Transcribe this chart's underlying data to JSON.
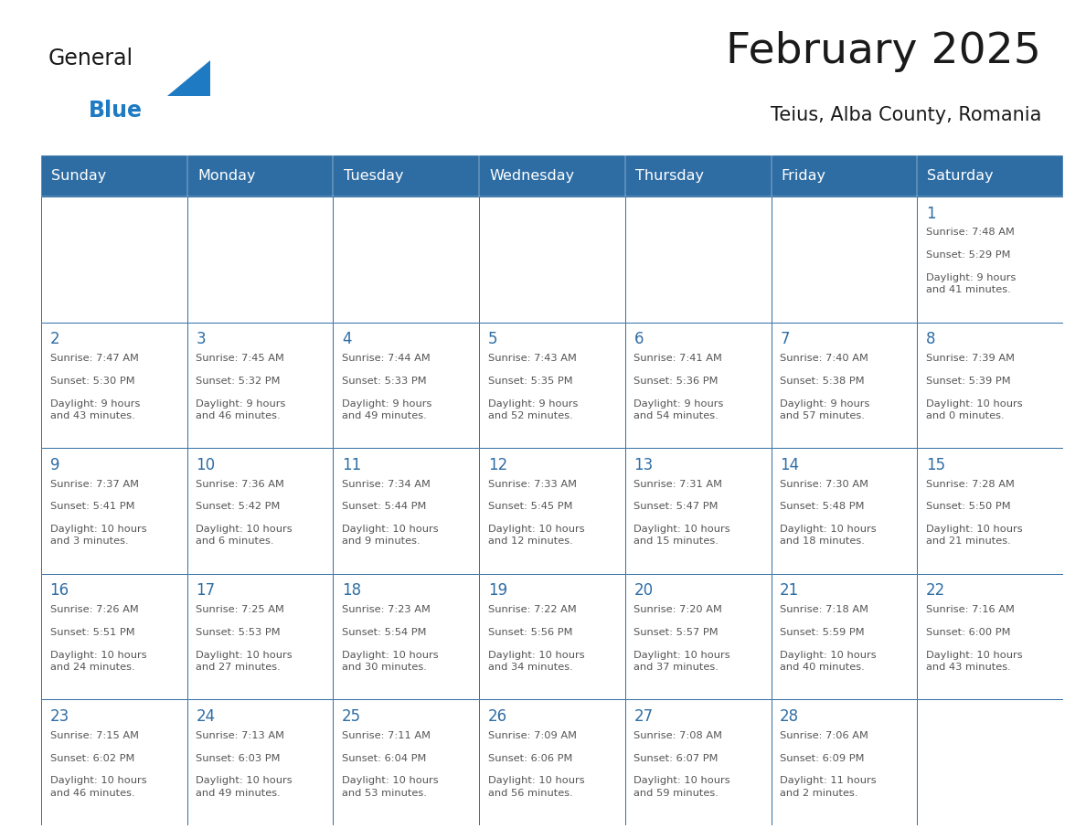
{
  "title": "February 2025",
  "subtitle": "Teius, Alba County, Romania",
  "header_bg": "#2E6DA4",
  "header_text": "#FFFFFF",
  "cell_bg": "#FFFFFF",
  "border_color": "#2E6DA4",
  "text_color": "#555555",
  "day_number_color": "#2E6DA4",
  "days_of_week": [
    "Sunday",
    "Monday",
    "Tuesday",
    "Wednesday",
    "Thursday",
    "Friday",
    "Saturday"
  ],
  "calendar": [
    [
      null,
      null,
      null,
      null,
      null,
      null,
      {
        "day": 1,
        "sunrise": "7:48 AM",
        "sunset": "5:29 PM",
        "daylight": "9 hours\nand 41 minutes."
      }
    ],
    [
      {
        "day": 2,
        "sunrise": "7:47 AM",
        "sunset": "5:30 PM",
        "daylight": "9 hours\nand 43 minutes."
      },
      {
        "day": 3,
        "sunrise": "7:45 AM",
        "sunset": "5:32 PM",
        "daylight": "9 hours\nand 46 minutes."
      },
      {
        "day": 4,
        "sunrise": "7:44 AM",
        "sunset": "5:33 PM",
        "daylight": "9 hours\nand 49 minutes."
      },
      {
        "day": 5,
        "sunrise": "7:43 AM",
        "sunset": "5:35 PM",
        "daylight": "9 hours\nand 52 minutes."
      },
      {
        "day": 6,
        "sunrise": "7:41 AM",
        "sunset": "5:36 PM",
        "daylight": "9 hours\nand 54 minutes."
      },
      {
        "day": 7,
        "sunrise": "7:40 AM",
        "sunset": "5:38 PM",
        "daylight": "9 hours\nand 57 minutes."
      },
      {
        "day": 8,
        "sunrise": "7:39 AM",
        "sunset": "5:39 PM",
        "daylight": "10 hours\nand 0 minutes."
      }
    ],
    [
      {
        "day": 9,
        "sunrise": "7:37 AM",
        "sunset": "5:41 PM",
        "daylight": "10 hours\nand 3 minutes."
      },
      {
        "day": 10,
        "sunrise": "7:36 AM",
        "sunset": "5:42 PM",
        "daylight": "10 hours\nand 6 minutes."
      },
      {
        "day": 11,
        "sunrise": "7:34 AM",
        "sunset": "5:44 PM",
        "daylight": "10 hours\nand 9 minutes."
      },
      {
        "day": 12,
        "sunrise": "7:33 AM",
        "sunset": "5:45 PM",
        "daylight": "10 hours\nand 12 minutes."
      },
      {
        "day": 13,
        "sunrise": "7:31 AM",
        "sunset": "5:47 PM",
        "daylight": "10 hours\nand 15 minutes."
      },
      {
        "day": 14,
        "sunrise": "7:30 AM",
        "sunset": "5:48 PM",
        "daylight": "10 hours\nand 18 minutes."
      },
      {
        "day": 15,
        "sunrise": "7:28 AM",
        "sunset": "5:50 PM",
        "daylight": "10 hours\nand 21 minutes."
      }
    ],
    [
      {
        "day": 16,
        "sunrise": "7:26 AM",
        "sunset": "5:51 PM",
        "daylight": "10 hours\nand 24 minutes."
      },
      {
        "day": 17,
        "sunrise": "7:25 AM",
        "sunset": "5:53 PM",
        "daylight": "10 hours\nand 27 minutes."
      },
      {
        "day": 18,
        "sunrise": "7:23 AM",
        "sunset": "5:54 PM",
        "daylight": "10 hours\nand 30 minutes."
      },
      {
        "day": 19,
        "sunrise": "7:22 AM",
        "sunset": "5:56 PM",
        "daylight": "10 hours\nand 34 minutes."
      },
      {
        "day": 20,
        "sunrise": "7:20 AM",
        "sunset": "5:57 PM",
        "daylight": "10 hours\nand 37 minutes."
      },
      {
        "day": 21,
        "sunrise": "7:18 AM",
        "sunset": "5:59 PM",
        "daylight": "10 hours\nand 40 minutes."
      },
      {
        "day": 22,
        "sunrise": "7:16 AM",
        "sunset": "6:00 PM",
        "daylight": "10 hours\nand 43 minutes."
      }
    ],
    [
      {
        "day": 23,
        "sunrise": "7:15 AM",
        "sunset": "6:02 PM",
        "daylight": "10 hours\nand 46 minutes."
      },
      {
        "day": 24,
        "sunrise": "7:13 AM",
        "sunset": "6:03 PM",
        "daylight": "10 hours\nand 49 minutes."
      },
      {
        "day": 25,
        "sunrise": "7:11 AM",
        "sunset": "6:04 PM",
        "daylight": "10 hours\nand 53 minutes."
      },
      {
        "day": 26,
        "sunrise": "7:09 AM",
        "sunset": "6:06 PM",
        "daylight": "10 hours\nand 56 minutes."
      },
      {
        "day": 27,
        "sunrise": "7:08 AM",
        "sunset": "6:07 PM",
        "daylight": "10 hours\nand 59 minutes."
      },
      {
        "day": 28,
        "sunrise": "7:06 AM",
        "sunset": "6:09 PM",
        "daylight": "11 hours\nand 2 minutes."
      },
      null
    ]
  ],
  "logo_color_general": "#1a1a1a",
  "logo_color_blue": "#1E7AC2"
}
